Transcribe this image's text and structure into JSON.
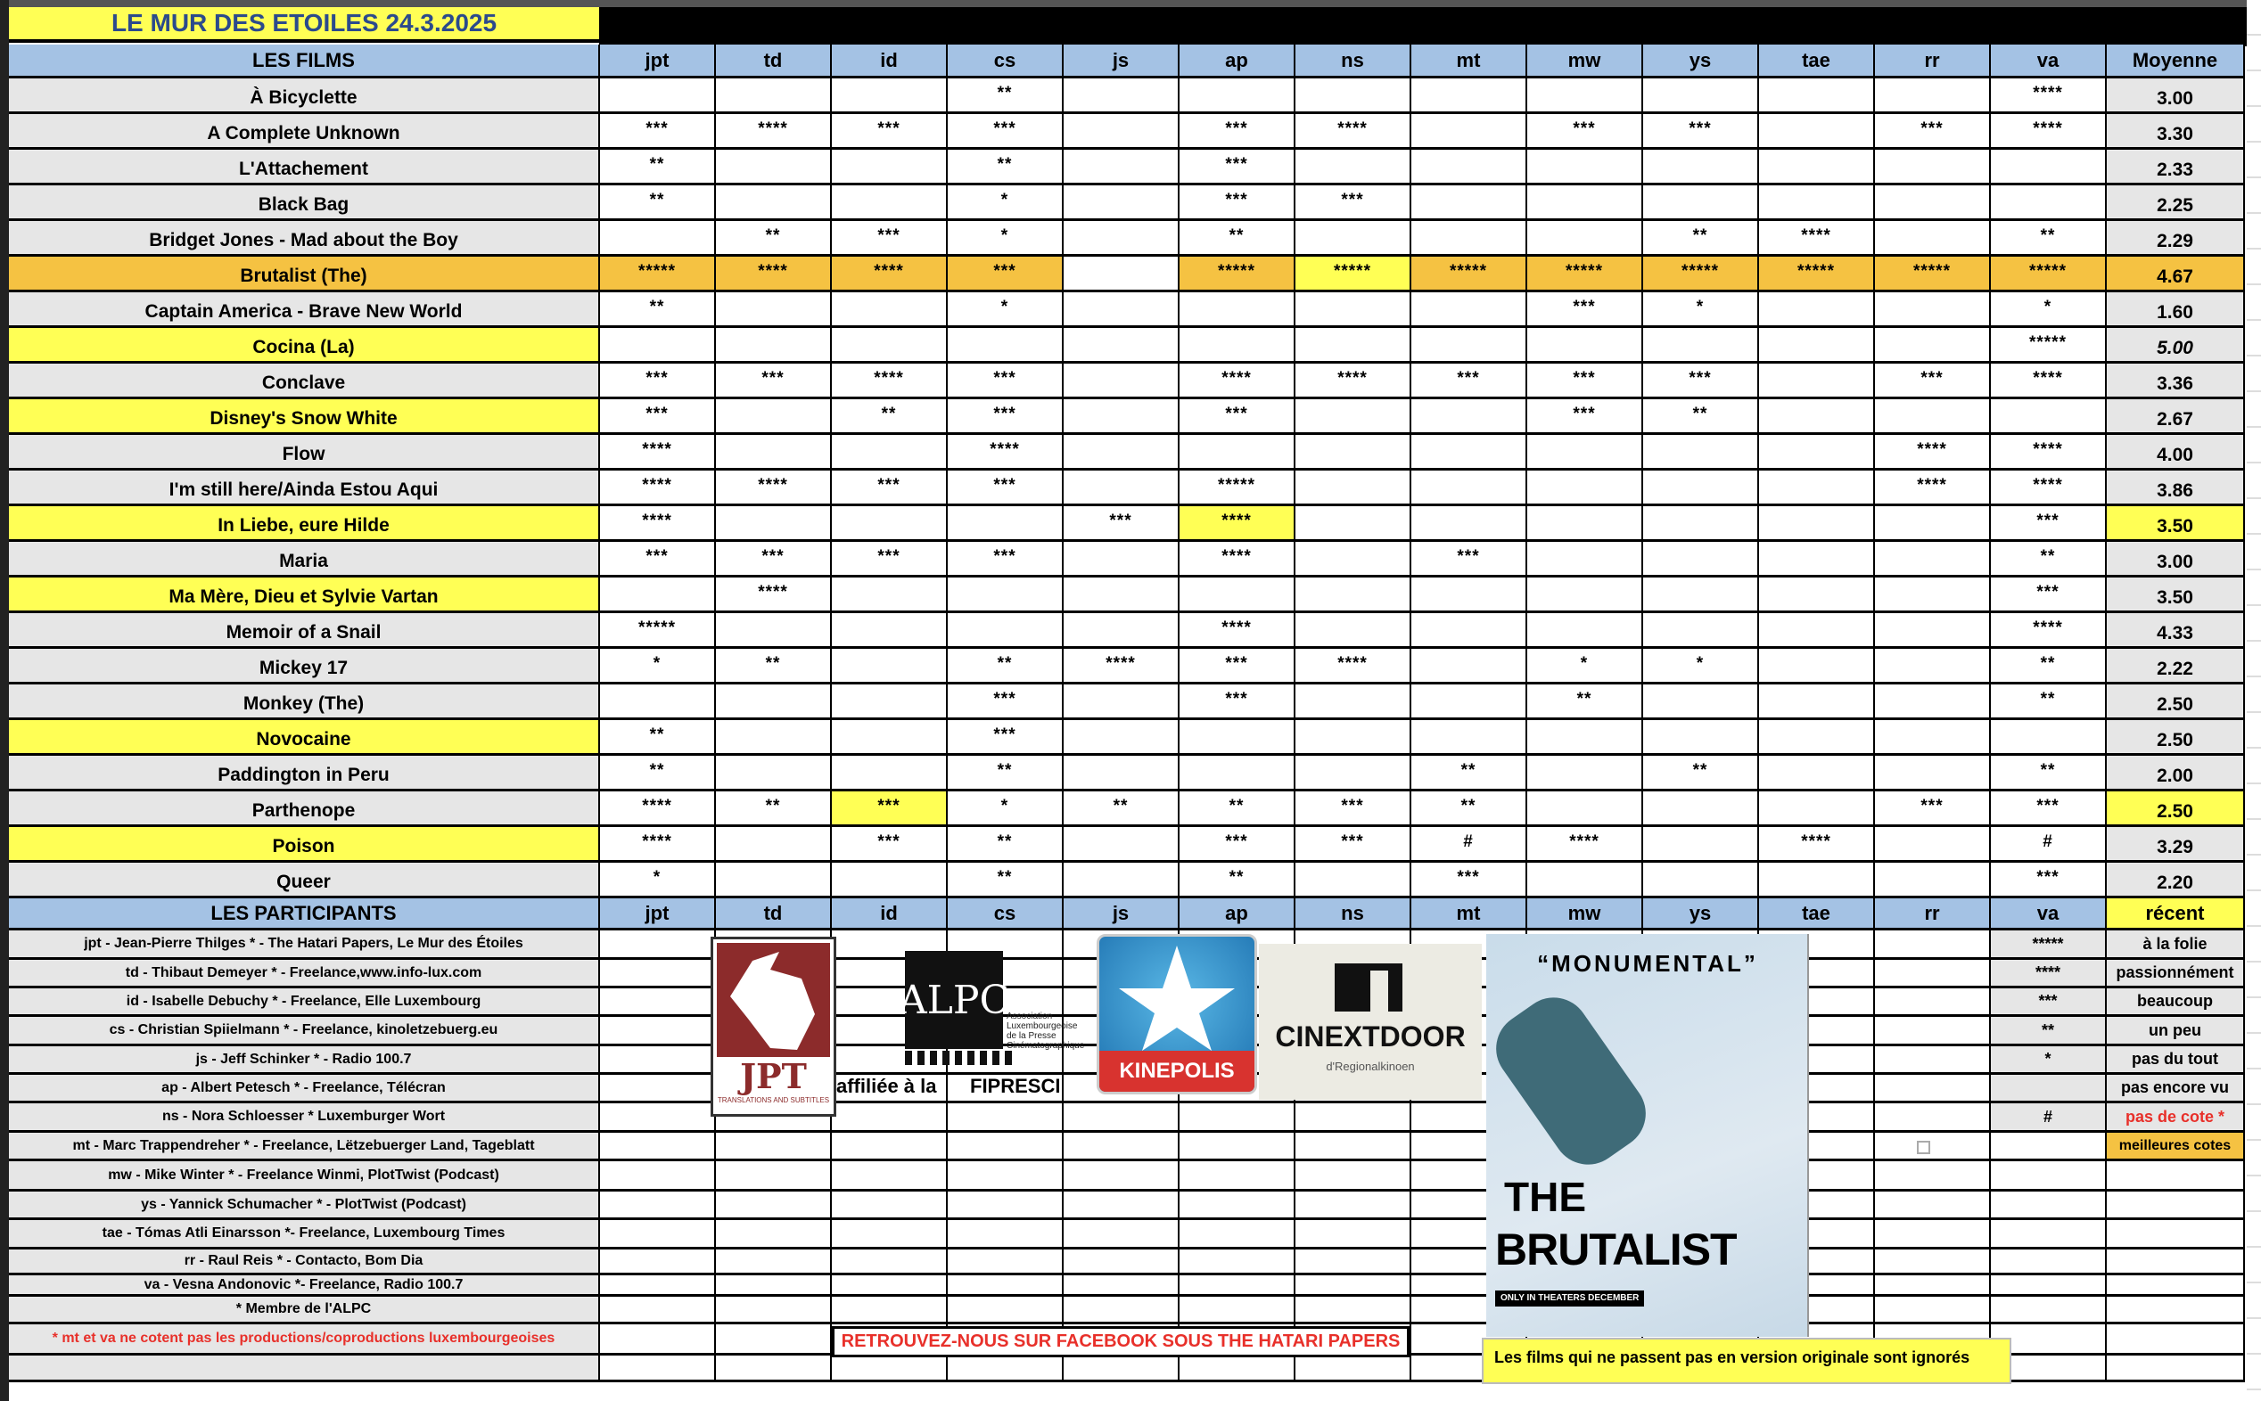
{
  "title": "LE MUR DES ETOILES 24.3.2025",
  "header": {
    "films_label": "LES FILMS",
    "critics": [
      "jpt",
      "td",
      "id",
      "cs",
      "js",
      "ap",
      "ns",
      "mt",
      "mw",
      "ys",
      "tae",
      "rr",
      "va"
    ],
    "average_label": "Moyenne"
  },
  "colors": {
    "yellow": "#ffff55",
    "orange": "#f5c242",
    "header_blue": "#a4c2e4",
    "gray": "#e6e6e6",
    "red": "#e8302a",
    "title_blue": "#2b4a8c"
  },
  "films": [
    {
      "title": "À Bicyclette",
      "ratings": [
        "",
        "",
        "",
        "**",
        "",
        "",
        "",
        "",
        "",
        "",
        "",
        "",
        "****"
      ],
      "average": "3.00"
    },
    {
      "title": "A Complete Unknown",
      "ratings": [
        "***",
        "****",
        "***",
        "***",
        "",
        "***",
        "****",
        "",
        "***",
        "***",
        "",
        "***",
        "****"
      ],
      "average": "3.30"
    },
    {
      "title": "L'Attachement",
      "ratings": [
        "**",
        "",
        "",
        "**",
        "",
        "***",
        "",
        "",
        "",
        "",
        "",
        "",
        ""
      ],
      "average": "2.33"
    },
    {
      "title": "Black Bag",
      "ratings": [
        "**",
        "",
        "",
        "*",
        "",
        "***",
        "***",
        "",
        "",
        "",
        "",
        "",
        ""
      ],
      "average": "2.25"
    },
    {
      "title": "Bridget Jones - Mad about the Boy",
      "ratings": [
        "",
        "**",
        "***",
        "*",
        "",
        "**",
        "",
        "",
        "",
        "**",
        "****",
        "",
        "**"
      ],
      "average": "2.29"
    },
    {
      "title": "Brutalist (The)",
      "ratings": [
        "*****",
        "****",
        "****",
        "***",
        "",
        "*****",
        "*****",
        "*****",
        "*****",
        "*****",
        "*****",
        "*****",
        "*****"
      ],
      "average": "4.67",
      "highlight": "orange",
      "cell_highlights": {
        "0": "orange",
        "1": "orange",
        "2": "orange",
        "3": "orange",
        "5": "orange",
        "6": "yellow",
        "7": "orange",
        "8": "orange",
        "9": "orange",
        "10": "orange",
        "11": "orange",
        "12": "orange"
      },
      "average_highlight": "orange"
    },
    {
      "title": "Captain America - Brave New World",
      "ratings": [
        "**",
        "",
        "",
        "*",
        "",
        "",
        "",
        "",
        "***",
        "*",
        "",
        "",
        "*"
      ],
      "average": "1.60"
    },
    {
      "title": "Cocina (La)",
      "ratings": [
        "",
        "",
        "",
        "",
        "",
        "",
        "",
        "",
        "",
        "",
        "",
        "",
        "*****"
      ],
      "average": "5.00",
      "highlight": "yellow",
      "average_italic": true
    },
    {
      "title": "Conclave",
      "ratings": [
        "***",
        "***",
        "****",
        "***",
        "",
        "****",
        "****",
        "***",
        "***",
        "***",
        "",
        "***",
        "****"
      ],
      "average": "3.36"
    },
    {
      "title": "Disney's Snow White",
      "ratings": [
        "***",
        "",
        "**",
        "***",
        "",
        "***",
        "",
        "",
        "***",
        "**",
        "",
        "",
        ""
      ],
      "average": "2.67",
      "highlight": "yellow"
    },
    {
      "title": "Flow",
      "ratings": [
        "****",
        "",
        "",
        "****",
        "",
        "",
        "",
        "",
        "",
        "",
        "",
        "****",
        "****"
      ],
      "average": "4.00"
    },
    {
      "title": "I'm still here/Ainda Estou Aqui",
      "ratings": [
        "****",
        "****",
        "***",
        "***",
        "",
        "*****",
        "",
        "",
        "",
        "",
        "",
        "****",
        "****"
      ],
      "average": "3.86"
    },
    {
      "title": "In Liebe, eure Hilde",
      "ratings": [
        "****",
        "",
        "",
        "",
        "***",
        "****",
        "",
        "",
        "",
        "",
        "",
        "",
        "***"
      ],
      "average": "3.50",
      "highlight": "yellow",
      "cell_highlights": {
        "5": "yellow"
      },
      "average_highlight": "yellow"
    },
    {
      "title": "Maria",
      "ratings": [
        "***",
        "***",
        "***",
        "***",
        "",
        "****",
        "",
        "***",
        "",
        "",
        "",
        "",
        "**"
      ],
      "average": "3.00"
    },
    {
      "title": "Ma Mère, Dieu et Sylvie Vartan",
      "ratings": [
        "",
        "****",
        "",
        "",
        "",
        "",
        "",
        "",
        "",
        "",
        "",
        "",
        "***"
      ],
      "average": "3.50",
      "highlight": "yellow"
    },
    {
      "title": "Memoir of a Snail",
      "ratings": [
        "*****",
        "",
        "",
        "",
        "",
        "****",
        "",
        "",
        "",
        "",
        "",
        "",
        "****"
      ],
      "average": "4.33"
    },
    {
      "title": "Mickey 17",
      "ratings": [
        "*",
        "**",
        "",
        "**",
        "****",
        "***",
        "****",
        "",
        "*",
        "*",
        "",
        "",
        "**"
      ],
      "average": "2.22"
    },
    {
      "title": "Monkey (The)",
      "ratings": [
        "",
        "",
        "",
        "***",
        "",
        "***",
        "",
        "",
        "**",
        "",
        "",
        "",
        "**"
      ],
      "average": "2.50"
    },
    {
      "title": "Novocaine",
      "ratings": [
        "**",
        "",
        "",
        "***",
        "",
        "",
        "",
        "",
        "",
        "",
        "",
        "",
        ""
      ],
      "average": "2.50",
      "highlight": "yellow"
    },
    {
      "title": "Paddington in Peru",
      "ratings": [
        "**",
        "",
        "",
        "**",
        "",
        "",
        "",
        "**",
        "",
        "**",
        "",
        "",
        "**"
      ],
      "average": "2.00"
    },
    {
      "title": "Parthenope",
      "ratings": [
        "****",
        "**",
        "***",
        "*",
        "**",
        "**",
        "***",
        "**",
        "",
        "",
        "",
        "***",
        "***"
      ],
      "average": "2.50",
      "cell_highlights": {
        "2": "yellow"
      },
      "average_highlight": "yellow"
    },
    {
      "title": "Poison",
      "ratings": [
        "****",
        "",
        "***",
        "**",
        "",
        "***",
        "***",
        "#",
        "****",
        "",
        "****",
        "",
        "#"
      ],
      "average": "3.29",
      "highlight": "yellow"
    },
    {
      "title": "Queer",
      "ratings": [
        "*",
        "",
        "",
        "**",
        "",
        "**",
        "",
        "***",
        "",
        "",
        "",
        "",
        "***"
      ],
      "average": "2.20"
    }
  ],
  "participants_header": {
    "label": "LES PARTICIPANTS",
    "recent_label": "récent"
  },
  "participants": [
    "jpt - Jean-Pierre Thilges * - The Hatari Papers, Le  Mur des Étoiles",
    "td - Thibaut Demeyer * - Freelance,www.info-lux.com",
    "id - Isabelle Debuchy * - Freelance, Elle Luxembourg",
    "cs - Christian Spiielmann * - Freelance, kinoletzebuerg.eu",
    "js - Jeff Schinker *  - Radio 100.7",
    "ap - Albert Petesch * - Freelance, Télécran",
    "ns - Nora Schloesser * Luxemburger Wort",
    "mt - Marc Trappendreher * - Freelance, Lëtzebuerger Land, Tageblatt",
    "mw - Mike Winter * - Freelance Winmi, PlotTwist (Podcast)",
    "ys - Yannick Schumacher * - PlotTwist (Podcast)",
    "tae - Tómas Atli Einarsson *- Freelance, Luxembourg Times",
    "rr - Raul Reis * - Contacto, Bom Dia",
    "va - Vesna Andonovic *- Freelance, Radio 100.7"
  ],
  "member_note": "* Membre de l'ALPC",
  "lux_note": "* mt et va ne cotent pas les productions/coproductions luxembourgeoises",
  "legend": [
    {
      "stars": "*****",
      "label": "à la folie"
    },
    {
      "stars": "****",
      "label": "passionnément"
    },
    {
      "stars": "***",
      "label": "beaucoup"
    },
    {
      "stars": "**",
      "label": "un peu"
    },
    {
      "stars": "*",
      "label": "pas du tout"
    },
    {
      "stars": "",
      "label": "pas encore vu"
    },
    {
      "stars": "#",
      "label": "pas de cote *"
    }
  ],
  "best_label": "meilleures cotes",
  "logos": {
    "jpt": {
      "name": "JPT",
      "sub": "TRANSLATIONS AND SUBTITLES"
    },
    "affiliated": "affiliée à la",
    "fipresci": "FIPRESCI",
    "alpc": {
      "name": "ALPC",
      "lines": [
        "Association",
        "Luxembourgeoise",
        "de la Presse",
        "Cinématographique"
      ]
    },
    "kinepolis": "KINEPOLIS",
    "cinextdoor": {
      "name": "CINEXTDOOR",
      "sub": "d'Regionalkinoen"
    }
  },
  "poster": {
    "quote": "“MONUMENTAL”",
    "title_the": "THE",
    "title_main": "BRUTALIST",
    "tagline": "ONLY IN THEATERS DECEMBER"
  },
  "facebook_note": "RETROUVEZ-NOUS SUR FACEBOOK SOUS THE HATARI PAPERS",
  "vo_note": "Les films qui ne passent pas en version originale sont ignorés"
}
